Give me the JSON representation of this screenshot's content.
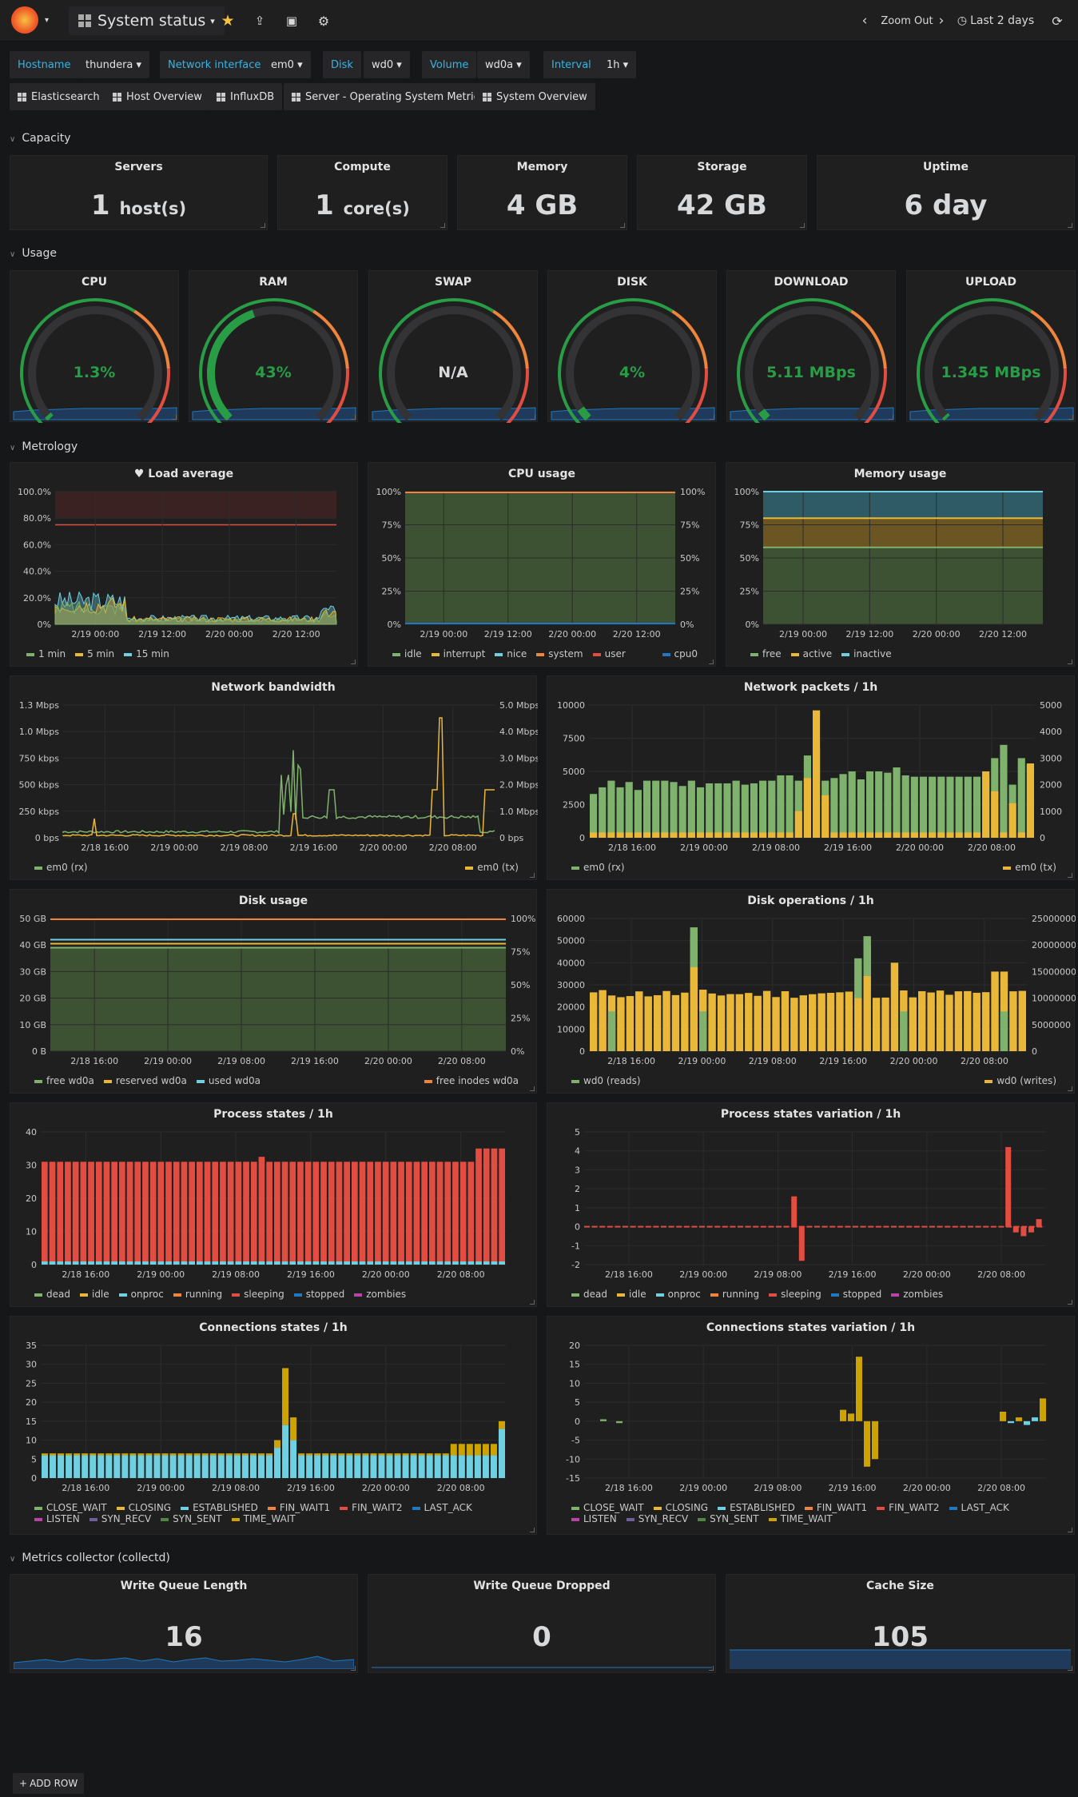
{
  "topbar": {
    "dashboard_title": "System status",
    "zoom_out": "Zoom Out",
    "time_range": "Last 2 days"
  },
  "variables": [
    {
      "label": "Hostname",
      "value": "thundera"
    },
    {
      "label": "Network interface",
      "value": "em0"
    },
    {
      "label": "Disk",
      "value": "wd0"
    },
    {
      "label": "Volume",
      "value": "wd0a"
    },
    {
      "label": "Interval",
      "value": "1h"
    }
  ],
  "links": [
    "Elasticsearch",
    "Host Overview",
    "InfluxDB",
    "Server - Operating System Metrics",
    "System Overview"
  ],
  "rows": {
    "capacity": "Capacity",
    "usage": "Usage",
    "metrology": "Metrology",
    "collector": "Metrics collector (collectd)"
  },
  "capacity": [
    {
      "title": "Servers",
      "value": "1",
      "unit": "host(s)"
    },
    {
      "title": "Compute",
      "value": "1",
      "unit": "core(s)"
    },
    {
      "title": "Memory",
      "value": "4 GB",
      "unit": ""
    },
    {
      "title": "Storage",
      "value": "42 GB",
      "unit": ""
    },
    {
      "title": "Uptime",
      "value": "6 day",
      "unit": ""
    }
  ],
  "gauges": [
    {
      "title": "CPU",
      "value": "1.3%",
      "fraction": 0.013,
      "color": "#299c46"
    },
    {
      "title": "RAM",
      "value": "43%",
      "fraction": 0.43,
      "color": "#299c46"
    },
    {
      "title": "SWAP",
      "value": "N/A",
      "fraction": 0,
      "color": "#d8d9da"
    },
    {
      "title": "DISK",
      "value": "4%",
      "fraction": 0.04,
      "color": "#299c46"
    },
    {
      "title": "DOWNLOAD",
      "value": "5.11 MBps",
      "fraction": 0.03,
      "color": "#299c46"
    },
    {
      "title": "UPLOAD",
      "value": "1.345 MBps",
      "fraction": 0.01,
      "color": "#299c46"
    }
  ],
  "collector_stats": [
    {
      "title": "Write Queue Length",
      "value": "16"
    },
    {
      "title": "Write Queue Dropped",
      "value": "0"
    },
    {
      "title": "Cache Size",
      "value": "105"
    }
  ],
  "add_row": "ADD ROW",
  "colors": {
    "green": "#7eb26d",
    "yellow": "#eab839",
    "blue": "#6ed0e0",
    "orange": "#ef843c",
    "red": "#e24d42",
    "darkblue": "#1f78c1",
    "pink": "#ba43a9",
    "purple": "#705da0",
    "lime": "#508642",
    "gold": "#cca300"
  },
  "chart_data": [
    {
      "type": "area",
      "title": "Load average",
      "x_ticks": [
        "2/19 00:00",
        "2/19 12:00",
        "2/20 00:00",
        "2/20 12:00"
      ],
      "y_ticks": [
        "100.0%",
        "80.0%",
        "60.0%",
        "40.0%",
        "20.0%",
        "0%"
      ],
      "ylim": [
        0,
        100
      ],
      "series": [
        {
          "name": "1 min",
          "color": "#7eb26d"
        },
        {
          "name": "5 min",
          "color": "#eab839"
        },
        {
          "name": "15 min",
          "color": "#6ed0e0"
        }
      ]
    },
    {
      "type": "area",
      "title": "CPU usage",
      "x_ticks": [
        "2/19 00:00",
        "2/19 12:00",
        "2/20 00:00",
        "2/20 12:00"
      ],
      "y_ticks": [
        "100%",
        "75%",
        "50%",
        "25%",
        "0%"
      ],
      "y2_ticks": [
        "100%",
        "75%",
        "50%",
        "25%",
        "0%"
      ],
      "ylim": [
        0,
        100
      ],
      "series": [
        {
          "name": "idle",
          "color": "#7eb26d"
        },
        {
          "name": "interrupt",
          "color": "#eab839"
        },
        {
          "name": "nice",
          "color": "#6ed0e0"
        },
        {
          "name": "system",
          "color": "#ef843c"
        },
        {
          "name": "user",
          "color": "#e24d42"
        },
        {
          "name": "cpu0",
          "color": "#1f78c1"
        }
      ]
    },
    {
      "type": "area",
      "title": "Memory usage",
      "x_ticks": [
        "2/19 00:00",
        "2/19 12:00",
        "2/20 00:00",
        "2/20 12:00"
      ],
      "y_ticks": [
        "100%",
        "75%",
        "50%",
        "25%",
        "0%"
      ],
      "ylim": [
        0,
        100
      ],
      "series": [
        {
          "name": "free",
          "color": "#7eb26d",
          "values": [
            58
          ]
        },
        {
          "name": "active",
          "color": "#eab839",
          "values": [
            80
          ]
        },
        {
          "name": "inactive",
          "color": "#6ed0e0",
          "values": [
            100
          ]
        }
      ]
    },
    {
      "type": "line",
      "title": "Network bandwidth",
      "x_ticks": [
        "2/18 16:00",
        "2/19 00:00",
        "2/19 08:00",
        "2/19 16:00",
        "2/20 00:00",
        "2/20 08:00"
      ],
      "y_ticks": [
        "1.3 Mbps",
        "1.0 Mbps",
        "750 kbps",
        "500 kbps",
        "250 kbps",
        "0 bps"
      ],
      "y2_ticks": [
        "5.0 Mbps",
        "4.0 Mbps",
        "3.0 Mbps",
        "2.0 Mbps",
        "1.0 Mbps",
        "0 bps"
      ],
      "series": [
        {
          "name": "em0 (rx)",
          "color": "#7eb26d"
        },
        {
          "name": "em0 (tx)",
          "color": "#eab839"
        }
      ]
    },
    {
      "type": "bar",
      "title": "Network packets / 1h",
      "x_ticks": [
        "2/18 16:00",
        "2/19 00:00",
        "2/19 08:00",
        "2/19 16:00",
        "2/20 00:00",
        "2/20 08:00"
      ],
      "y_ticks": [
        "10000",
        "7500",
        "5000",
        "2500",
        "0"
      ],
      "y2_ticks": [
        "5000",
        "4000",
        "3000",
        "2000",
        "1000",
        "0"
      ],
      "ylim": [
        0,
        10000
      ],
      "series": [
        {
          "name": "em0 (rx)",
          "color": "#7eb26d",
          "values": [
            3300,
            3800,
            4300,
            3800,
            4200,
            3600,
            4300,
            4300,
            4300,
            4200,
            3900,
            4300,
            3800,
            4100,
            4100,
            4100,
            4300,
            4000,
            4100,
            4300,
            4300,
            4700,
            4700,
            4300,
            6200,
            6800,
            4300,
            4500,
            4800,
            5000,
            4400,
            5000,
            5000,
            4900,
            5300,
            4700,
            4600,
            4600,
            4600,
            4600,
            4600,
            4600,
            4600,
            4600,
            4600,
            6000,
            7000,
            4000,
            6000,
            5500
          ]
        },
        {
          "name": "em0 (tx)",
          "color": "#eab839",
          "values": [
            400,
            400,
            400,
            400,
            400,
            400,
            400,
            400,
            400,
            400,
            400,
            400,
            400,
            400,
            400,
            400,
            400,
            400,
            400,
            400,
            400,
            400,
            400,
            2000,
            4500,
            9600,
            3200,
            400,
            400,
            400,
            400,
            400,
            400,
            400,
            400,
            400,
            400,
            400,
            400,
            400,
            400,
            400,
            400,
            400,
            5000,
            3500,
            400,
            2600,
            400,
            5600
          ]
        }
      ]
    },
    {
      "type": "area",
      "title": "Disk usage",
      "x_ticks": [
        "2/18 16:00",
        "2/19 00:00",
        "2/19 08:00",
        "2/19 16:00",
        "2/20 00:00",
        "2/20 08:00"
      ],
      "y_ticks": [
        "50 GB",
        "40 GB",
        "30 GB",
        "20 GB",
        "10 GB",
        "0 B"
      ],
      "y2_ticks": [
        "100%",
        "75%",
        "50%",
        "25%",
        "0%"
      ],
      "series": [
        {
          "name": "free wd0a",
          "color": "#7eb26d",
          "values": [
            39
          ]
        },
        {
          "name": "reserved wd0a",
          "color": "#eab839",
          "values": [
            40.5
          ]
        },
        {
          "name": "used wd0a",
          "color": "#6ed0e0",
          "values": [
            42
          ]
        },
        {
          "name": "free inodes wd0a",
          "color": "#ef843c",
          "values": [
            100
          ]
        }
      ]
    },
    {
      "type": "bar",
      "title": "Disk operations / 1h",
      "x_ticks": [
        "2/18 16:00",
        "2/19 00:00",
        "2/19 08:00",
        "2/19 16:00",
        "2/20 00:00",
        "2/20 08:00"
      ],
      "y_ticks": [
        "60000",
        "50000",
        "40000",
        "30000",
        "20000",
        "10000",
        "0"
      ],
      "y2_ticks": [
        "25000000",
        "20000000",
        "15000000",
        "10000000",
        "5000000",
        "0"
      ],
      "series": [
        {
          "name": "wd0 (reads)",
          "color": "#7eb26d"
        },
        {
          "name": "wd0 (writes)",
          "color": "#eab839"
        }
      ]
    },
    {
      "type": "bar",
      "title": "Process states / 1h",
      "x_ticks": [
        "2/18 16:00",
        "2/19 00:00",
        "2/19 08:00",
        "2/19 16:00",
        "2/20 00:00",
        "2/20 08:00"
      ],
      "y_ticks": [
        "40",
        "30",
        "20",
        "10",
        "0"
      ],
      "ylim": [
        0,
        40
      ],
      "series": [
        {
          "name": "dead",
          "color": "#7eb26d"
        },
        {
          "name": "idle",
          "color": "#eab839"
        },
        {
          "name": "onproc",
          "color": "#6ed0e0"
        },
        {
          "name": "running",
          "color": "#ef843c"
        },
        {
          "name": "sleeping",
          "color": "#e24d42"
        },
        {
          "name": "stopped",
          "color": "#1f78c1"
        },
        {
          "name": "zombies",
          "color": "#ba43a9"
        }
      ]
    },
    {
      "type": "bar",
      "title": "Process states variation / 1h",
      "x_ticks": [
        "2/18 16:00",
        "2/19 00:00",
        "2/19 08:00",
        "2/19 16:00",
        "2/20 00:00",
        "2/20 08:00"
      ],
      "y_ticks": [
        "5",
        "4",
        "3",
        "2",
        "1",
        "0",
        "-1",
        "-2"
      ],
      "ylim": [
        -2,
        5
      ],
      "series": [
        {
          "name": "dead",
          "color": "#7eb26d"
        },
        {
          "name": "idle",
          "color": "#eab839"
        },
        {
          "name": "onproc",
          "color": "#6ed0e0"
        },
        {
          "name": "running",
          "color": "#ef843c"
        },
        {
          "name": "sleeping",
          "color": "#e24d42"
        },
        {
          "name": "stopped",
          "color": "#1f78c1"
        },
        {
          "name": "zombies",
          "color": "#ba43a9"
        }
      ]
    },
    {
      "type": "bar",
      "title": "Connections states / 1h",
      "x_ticks": [
        "2/18 16:00",
        "2/19 00:00",
        "2/19 08:00",
        "2/19 16:00",
        "2/20 00:00",
        "2/20 08:00"
      ],
      "y_ticks": [
        "35",
        "30",
        "25",
        "20",
        "15",
        "10",
        "5",
        "0"
      ],
      "ylim": [
        0,
        35
      ],
      "series": [
        {
          "name": "CLOSE_WAIT",
          "color": "#7eb26d"
        },
        {
          "name": "CLOSING",
          "color": "#eab839"
        },
        {
          "name": "ESTABLISHED",
          "color": "#6ed0e0"
        },
        {
          "name": "FIN_WAIT1",
          "color": "#ef843c"
        },
        {
          "name": "FIN_WAIT2",
          "color": "#e24d42"
        },
        {
          "name": "LAST_ACK",
          "color": "#1f78c1"
        },
        {
          "name": "LISTEN",
          "color": "#ba43a9"
        },
        {
          "name": "SYN_RECV",
          "color": "#705da0"
        },
        {
          "name": "SYN_SENT",
          "color": "#508642"
        },
        {
          "name": "TIME_WAIT",
          "color": "#cca300"
        }
      ]
    },
    {
      "type": "bar",
      "title": "Connections states variation / 1h",
      "x_ticks": [
        "2/18 16:00",
        "2/19 00:00",
        "2/19 08:00",
        "2/19 16:00",
        "2/20 00:00",
        "2/20 08:00"
      ],
      "y_ticks": [
        "20",
        "15",
        "10",
        "5",
        "0",
        "-5",
        "-10",
        "-15"
      ],
      "ylim": [
        -15,
        20
      ],
      "series": [
        {
          "name": "CLOSE_WAIT",
          "color": "#7eb26d"
        },
        {
          "name": "CLOSING",
          "color": "#eab839"
        },
        {
          "name": "ESTABLISHED",
          "color": "#6ed0e0"
        },
        {
          "name": "FIN_WAIT1",
          "color": "#ef843c"
        },
        {
          "name": "FIN_WAIT2",
          "color": "#e24d42"
        },
        {
          "name": "LAST_ACK",
          "color": "#1f78c1"
        },
        {
          "name": "LISTEN",
          "color": "#ba43a9"
        },
        {
          "name": "SYN_RECV",
          "color": "#705da0"
        },
        {
          "name": "SYN_SENT",
          "color": "#508642"
        },
        {
          "name": "TIME_WAIT",
          "color": "#cca300"
        }
      ]
    }
  ]
}
